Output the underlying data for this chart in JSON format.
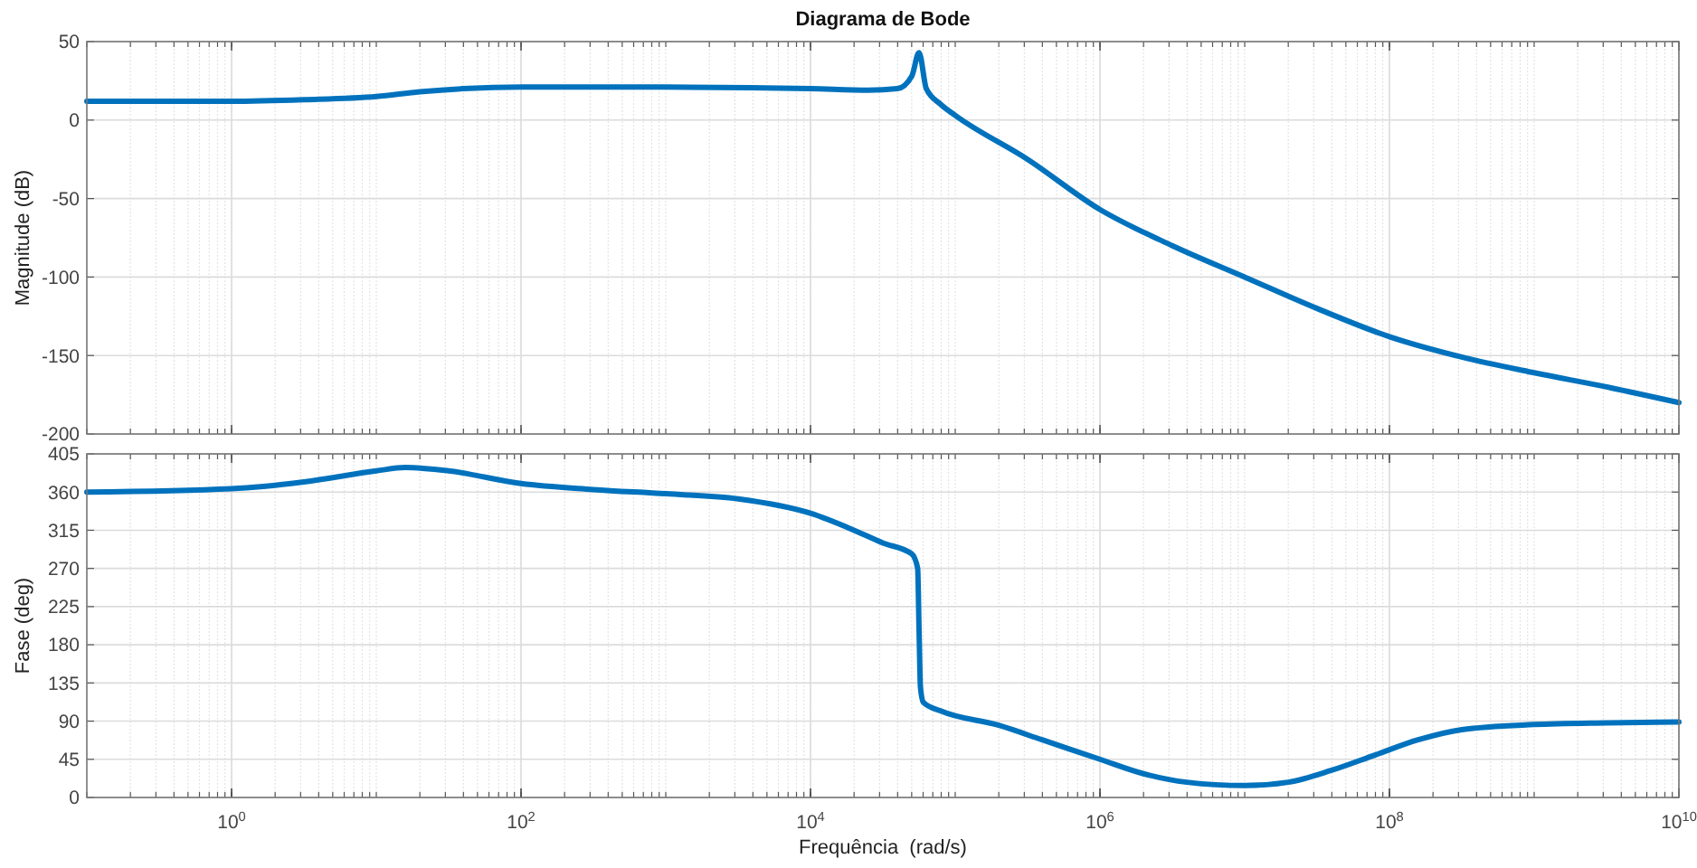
{
  "chart_data": [
    {
      "type": "line",
      "title": "Diagrama de Bode",
      "ylabel": "Magnitude (dB)",
      "log": "x",
      "grid": true,
      "tick_labels": "y",
      "xlim": [
        0.1,
        10000000000.0
      ],
      "xticks": [
        {
          "value": 1,
          "label": null
        },
        {
          "value": 100,
          "label": null
        },
        {
          "value": 10000.0,
          "label": null
        },
        {
          "value": 1000000.0,
          "label": null
        },
        {
          "value": 100000000.0,
          "label": null
        },
        {
          "value": 10000000000.0,
          "label": null
        }
      ],
      "ylim": [
        -200,
        50
      ],
      "yticks": [
        -200,
        -150,
        -100,
        -50,
        0,
        50
      ],
      "x": [
        0.1,
        1,
        3.16,
        10,
        20,
        40,
        100,
        1000,
        10000.0,
        25100.0,
        39800.0,
        50100.0,
        56200.0,
        63100.0,
        79400.0,
        100000.0,
        316000.0,
        1000000.0,
        3160000.0,
        10000000.0,
        31600000.0,
        100000000.0,
        316000000.0,
        1000000000.0,
        3160000000.0,
        10000000000.0
      ],
      "series": [
        {
          "color": "#0072bd",
          "values": [
            12,
            12,
            13,
            15,
            18,
            20,
            21,
            21,
            20,
            19,
            20,
            28,
            43,
            20,
            10,
            3,
            -25,
            -57,
            -80,
            -100,
            -120,
            -138,
            -151,
            -161,
            -170,
            -180
          ]
        }
      ]
    },
    {
      "type": "line",
      "ylabel": "Fase (deg)",
      "xlabel": "Frequência  (rad/s)",
      "log": "x",
      "grid": true,
      "xlim": [
        0.1,
        10000000000.0
      ],
      "xticks": [
        {
          "value": 1,
          "label": "10$^{0}$"
        },
        {
          "value": 100,
          "label": "10$^{2}$"
        },
        {
          "value": 10000.0,
          "label": "10$^{4}$"
        },
        {
          "value": 1000000.0,
          "label": "10$^{6}$"
        },
        {
          "value": 100000000.0,
          "label": "10$^{8}$"
        },
        {
          "value": 10000000000.0,
          "label": "10$^{10}$"
        }
      ],
      "ylim": [
        0,
        405
      ],
      "yticks": [
        0,
        45,
        90,
        135,
        180,
        225,
        270,
        315,
        360,
        405
      ],
      "x": [
        0.1,
        1,
        3.16,
        10,
        15.8,
        31.6,
        100,
        316,
        1000,
        3160,
        10000.0,
        20000.0,
        31600.0,
        50100.0,
        55000.0,
        56200.0,
        57500.0,
        60300.0,
        79400.0,
        200000.0,
        398000.0,
        1000000.0,
        2000000.0,
        3980000.0,
        10000000.0,
        20000000.0,
        39800000.0,
        79400000.0,
        158000000.0,
        316000000.0,
        1000000000.0,
        3160000000.0,
        10000000000.0
      ],
      "series": [
        {
          "color": "#0072bd",
          "values": [
            360,
            364,
            372,
            385,
            389,
            385,
            370,
            363,
            358,
            352,
            335,
            315,
            300,
            287,
            270,
            200,
            130,
            112,
            102,
            85,
            68,
            45,
            28,
            18,
            14,
            18,
            32,
            50,
            68,
            80,
            86,
            88,
            89
          ]
        }
      ]
    }
  ]
}
